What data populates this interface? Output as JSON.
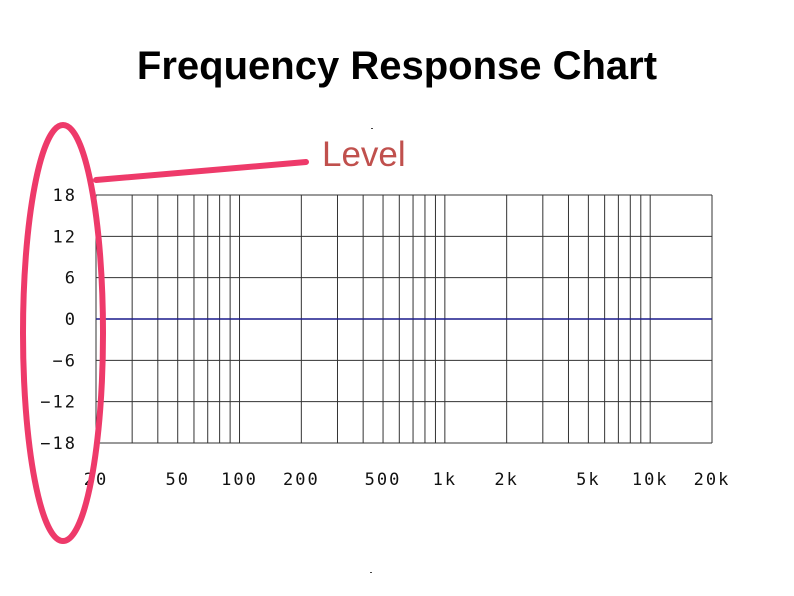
{
  "title": "Frequency Response Chart",
  "annotation": {
    "label": "Level",
    "color": "#c0504d",
    "highlight_color": "#ee3a6a"
  },
  "chart_data": {
    "type": "line",
    "title": "Frequency Response Chart",
    "xlabel": "",
    "ylabel": "Level",
    "x_scale": "log",
    "xlim": [
      20,
      20000
    ],
    "ylim": [
      -18,
      18
    ],
    "x_ticks": [
      {
        "value": 20,
        "label": "20"
      },
      {
        "value": 50,
        "label": "50"
      },
      {
        "value": 100,
        "label": "100"
      },
      {
        "value": 200,
        "label": "200"
      },
      {
        "value": 500,
        "label": "500"
      },
      {
        "value": 1000,
        "label": "1k"
      },
      {
        "value": 2000,
        "label": "2k"
      },
      {
        "value": 5000,
        "label": "5k"
      },
      {
        "value": 10000,
        "label": "10k"
      },
      {
        "value": 20000,
        "label": "20k"
      }
    ],
    "y_ticks": [
      {
        "value": 18,
        "label": "18"
      },
      {
        "value": 12,
        "label": "12"
      },
      {
        "value": 6,
        "label": "6"
      },
      {
        "value": 0,
        "label": "0"
      },
      {
        "value": -6,
        "label": "−6"
      },
      {
        "value": -12,
        "label": "−12"
      },
      {
        "value": -18,
        "label": "−18"
      }
    ],
    "grid": true,
    "grid_color": "#333333",
    "series": [
      {
        "color": "#1a1a8c",
        "points": [
          {
            "x": 20,
            "y": 0
          },
          {
            "x": 20000,
            "y": 0
          }
        ]
      }
    ]
  }
}
